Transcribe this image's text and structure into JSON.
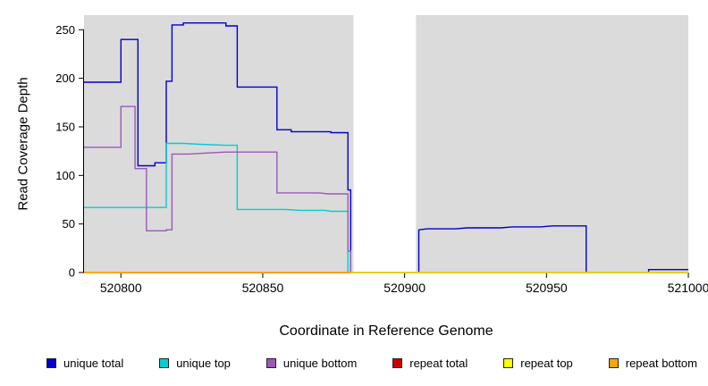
{
  "figure": {
    "background": "#ffffff",
    "plot_background": "#dbdbdb",
    "band_color": "#ffffff"
  },
  "axes": {
    "x": {
      "label": "Coordinate in Reference Genome",
      "ticks": [
        520800,
        520850,
        520900,
        520950,
        521000
      ]
    },
    "y": {
      "label": "Read Coverage Depth",
      "ticks": [
        0,
        50,
        100,
        150,
        200,
        250
      ]
    }
  },
  "chart_data": {
    "type": "line",
    "title": "",
    "xlabel": "Coordinate in Reference Genome",
    "ylabel": "Read Coverage Depth",
    "xlim": [
      520787,
      521000
    ],
    "ylim": [
      0,
      265
    ],
    "grid": false,
    "legend_position": "bottom",
    "highlight_band_x": [
      520882,
      520904
    ],
    "series": [
      {
        "name": "unique total",
        "color": "#0000CD",
        "points": [
          [
            520787,
            196
          ],
          [
            520800,
            196
          ],
          [
            520800,
            240
          ],
          [
            520806,
            240
          ],
          [
            520806,
            110
          ],
          [
            520812,
            110
          ],
          [
            520812,
            113
          ],
          [
            520816,
            113
          ],
          [
            520816,
            197
          ],
          [
            520818,
            197
          ],
          [
            520818,
            255
          ],
          [
            520822,
            255
          ],
          [
            520822,
            257
          ],
          [
            520837,
            257
          ],
          [
            520837,
            254
          ],
          [
            520841,
            254
          ],
          [
            520841,
            191
          ],
          [
            520855,
            191
          ],
          [
            520855,
            147
          ],
          [
            520860,
            147
          ],
          [
            520860,
            145
          ],
          [
            520874,
            145
          ],
          [
            520874,
            144
          ],
          [
            520880,
            144
          ],
          [
            520880,
            85
          ],
          [
            520881,
            85
          ],
          [
            520881,
            0
          ],
          [
            520905,
            0
          ],
          [
            520905,
            44
          ],
          [
            520908,
            45
          ],
          [
            520918,
            45
          ],
          [
            520922,
            46
          ],
          [
            520934,
            46
          ],
          [
            520938,
            47
          ],
          [
            520948,
            47
          ],
          [
            520952,
            48
          ],
          [
            520964,
            48
          ],
          [
            520964,
            0
          ],
          [
            520986,
            0
          ],
          [
            520986,
            3
          ],
          [
            521000,
            3
          ]
        ]
      },
      {
        "name": "unique top",
        "color": "#00CED1",
        "points": [
          [
            520787,
            67
          ],
          [
            520816,
            67
          ],
          [
            520816,
            133
          ],
          [
            520822,
            133
          ],
          [
            520828,
            132
          ],
          [
            520837,
            131
          ],
          [
            520841,
            131
          ],
          [
            520841,
            65
          ],
          [
            520858,
            65
          ],
          [
            520863,
            64
          ],
          [
            520872,
            64
          ],
          [
            520874,
            63
          ],
          [
            520880,
            63
          ],
          [
            520880,
            0
          ],
          [
            521000,
            0
          ]
        ]
      },
      {
        "name": "unique bottom",
        "color": "#9B59B6",
        "points": [
          [
            520787,
            129
          ],
          [
            520800,
            129
          ],
          [
            520800,
            171
          ],
          [
            520805,
            171
          ],
          [
            520805,
            107
          ],
          [
            520809,
            107
          ],
          [
            520809,
            43
          ],
          [
            520816,
            43
          ],
          [
            520816,
            44
          ],
          [
            520818,
            44
          ],
          [
            520818,
            122
          ],
          [
            520824,
            122
          ],
          [
            520830,
            123
          ],
          [
            520837,
            124
          ],
          [
            520855,
            124
          ],
          [
            520855,
            82
          ],
          [
            520870,
            82
          ],
          [
            520873,
            81
          ],
          [
            520880,
            81
          ],
          [
            520880,
            22
          ],
          [
            520881,
            22
          ],
          [
            520881,
            0
          ],
          [
            521000,
            0
          ]
        ]
      },
      {
        "name": "repeat total",
        "color": "#CD0000",
        "points": [
          [
            520787,
            0
          ],
          [
            521000,
            0
          ]
        ]
      },
      {
        "name": "repeat top",
        "color": "#FFFF00",
        "points": [
          [
            520787,
            0
          ],
          [
            521000,
            0
          ]
        ]
      },
      {
        "name": "repeat bottom",
        "color": "#FFA500",
        "points": [
          [
            520787,
            0
          ],
          [
            520881,
            0
          ]
        ]
      }
    ]
  },
  "legend": {
    "items": [
      {
        "label": "unique total",
        "color": "#0000CD"
      },
      {
        "label": "unique top",
        "color": "#00CED1"
      },
      {
        "label": "unique bottom",
        "color": "#9B59B6"
      },
      {
        "label": "repeat total",
        "color": "#CD0000"
      },
      {
        "label": "repeat top",
        "color": "#FFFF00"
      },
      {
        "label": "repeat bottom",
        "color": "#FFA500"
      }
    ]
  }
}
